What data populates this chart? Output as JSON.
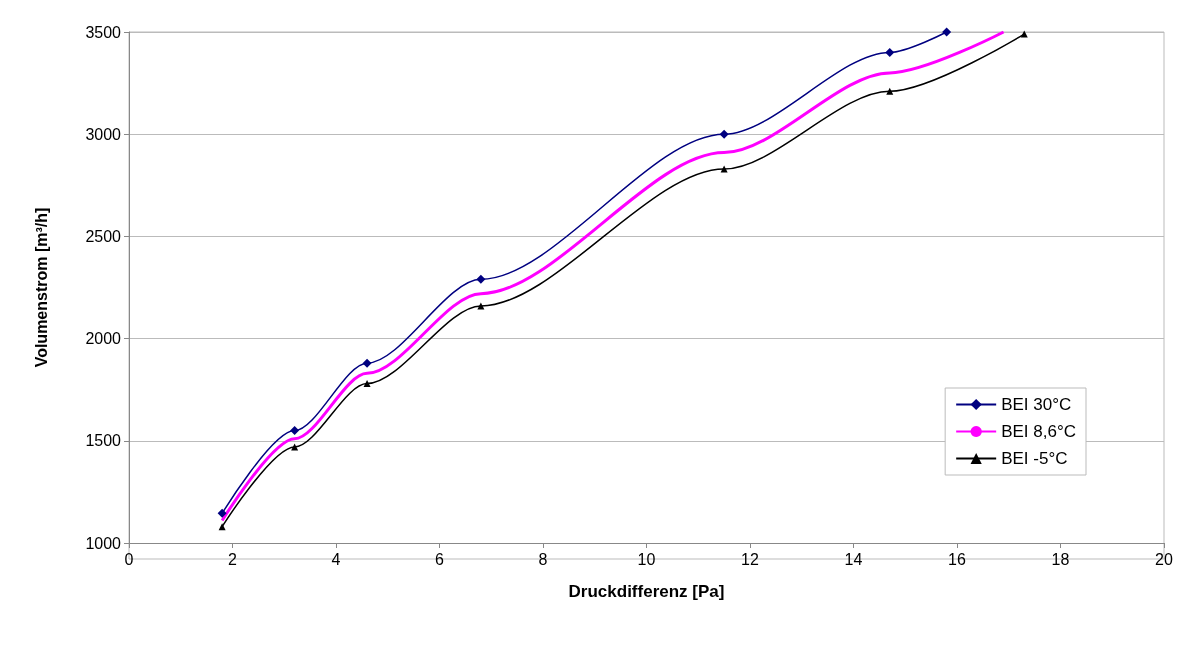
{
  "chart_data": {
    "type": "line",
    "xlabel": "Druckdifferenz [Pa]",
    "ylabel": "Volumenstrom [m³/h]",
    "xlim": [
      0,
      20
    ],
    "xticks": [
      0,
      2,
      4,
      6,
      8,
      10,
      12,
      14,
      16,
      18,
      20
    ],
    "ylim": [
      1000,
      3500
    ],
    "yticks": [
      1000,
      1500,
      2000,
      2500,
      3000,
      3500
    ],
    "grid": "y",
    "legend": "right",
    "line_style": "solid",
    "series": [
      {
        "name": "BEI 30°C",
        "color": "#000080",
        "marker": "diamond",
        "x": [
          1.8,
          3.2,
          4.6,
          6.8,
          11.5,
          14.7,
          15.8
        ],
        "values": [
          1145,
          1550,
          1880,
          2290,
          3000,
          3400,
          3500
        ]
      },
      {
        "name": "BEI 8,6°C",
        "color": "#ff00ff",
        "marker": "none",
        "x": [
          1.8,
          3.2,
          4.6,
          6.8,
          11.5,
          14.7,
          16.9
        ],
        "values": [
          1110,
          1510,
          1830,
          2220,
          2910,
          3300,
          3500
        ]
      },
      {
        "name": "BEI -5°C",
        "color": "#000000",
        "marker": "triangle",
        "x": [
          1.8,
          3.2,
          4.6,
          6.8,
          11.5,
          14.7,
          17.3
        ],
        "values": [
          1080,
          1470,
          1780,
          2160,
          2830,
          3210,
          3490
        ]
      }
    ]
  }
}
